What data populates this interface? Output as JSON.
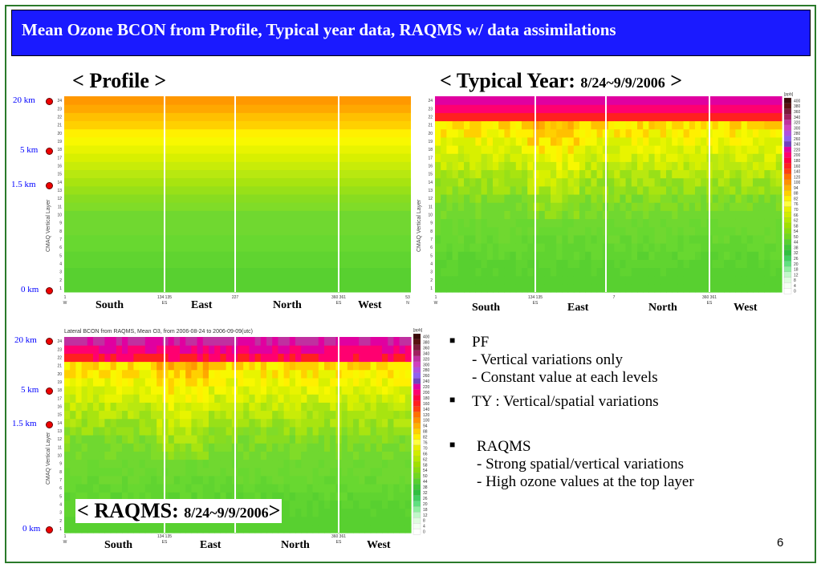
{
  "title": "Mean Ozone BCON from Profile, Typical year data, RAQMS w/ data assimilations",
  "headings": {
    "profile": "< Profile >",
    "typical_main": "< Typical Year:",
    "typical_dates": "8/24~9/9/2006",
    "typical_close": ">",
    "raqms_main": "< RAQMS:",
    "raqms_dates": "8/24~9/9/2006",
    "raqms_close": ">"
  },
  "km_labels": [
    "20 km",
    "5 km",
    "1.5 km",
    "0 km"
  ],
  "regions": [
    "South",
    "East",
    "North",
    "West"
  ],
  "axis": {
    "ylabel": "CMAQ Vertical Layer",
    "x_ticks_profile": [
      "1",
      "134 135",
      "227",
      "360 361",
      "53"
    ],
    "x_ticks_typical": [
      "1",
      "134 135",
      "7",
      "360 361"
    ],
    "x_ticks_raqms": [
      "1",
      "134 135",
      "360 361"
    ],
    "x_sub": [
      "W",
      "ES",
      "ES",
      "N"
    ]
  },
  "raqms_caption": "Lateral BCON from RAQMS, Mean O3, from 2006-08-24 to 2006-09-09(utc)",
  "colorbar": {
    "unit": "[ppb]",
    "labels": [
      "400",
      "380",
      "360",
      "340",
      "320",
      "300",
      "280",
      "260",
      "240",
      "220",
      "200",
      "180",
      "160",
      "140",
      "120",
      "100",
      "94",
      "88",
      "82",
      "76",
      "70",
      "66",
      "62",
      "58",
      "54",
      "50",
      "44",
      "38",
      "32",
      "26",
      "20",
      "18",
      "12",
      "8",
      "4",
      "0"
    ],
    "colors": [
      "#3a0a0a",
      "#5a1010",
      "#7a1a3a",
      "#a02060",
      "#c030a0",
      "#d040c0",
      "#b050e0",
      "#9060f0",
      "#7040c0",
      "#e000a0",
      "#ff0070",
      "#ff0040",
      "#ff2020",
      "#ff4010",
      "#ff7000",
      "#ff9000",
      "#ffb000",
      "#ffd000",
      "#fff000",
      "#ffff40",
      "#e8f000",
      "#d0ec00",
      "#b8e800",
      "#a0e000",
      "#88dc10",
      "#70d820",
      "#58d030",
      "#40c838",
      "#30c040",
      "#40d060",
      "#60e080",
      "#90f0a0",
      "#c0f8c8",
      "#e0fce0",
      "#f4fff4",
      "#ffffff"
    ]
  },
  "bullets": [
    {
      "head": "PF",
      "lines": [
        "- Vertical variations only",
        "- Constant value at each levels"
      ]
    },
    {
      "head": "TY : Vertical/spatial variations",
      "lines": []
    },
    {
      "head": "RAQMS",
      "lines": [
        "- Strong spatial/vertical variations",
        "- High ozone values at the top layer"
      ]
    }
  ],
  "page_number": "6"
}
